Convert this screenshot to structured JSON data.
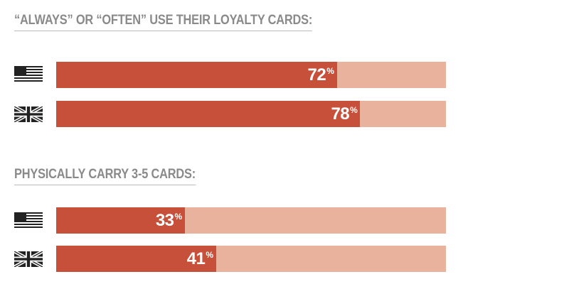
{
  "chart_data": [
    {
      "type": "bar",
      "title": "“ALWAYS” OR “OFTEN” USE THEIR LOYALTY CARDS:",
      "categories": [
        "us-flag",
        "uk-flag"
      ],
      "values": [
        72,
        78
      ],
      "value_labels": [
        "72",
        "78"
      ],
      "unit": "%",
      "xlim": [
        0,
        100
      ]
    },
    {
      "type": "bar",
      "title": "PHYSICALLY CARRY 3-5 CARDS:",
      "categories": [
        "us-flag",
        "uk-flag"
      ],
      "values": [
        33,
        41
      ],
      "value_labels": [
        "33",
        "41"
      ],
      "unit": "%",
      "xlim": [
        0,
        100
      ]
    }
  ],
  "colors": {
    "bar_fill": "#c65039",
    "bar_track": "#e8b29c",
    "title_text": "#8a8a8a",
    "value_text": "#ffffff"
  }
}
